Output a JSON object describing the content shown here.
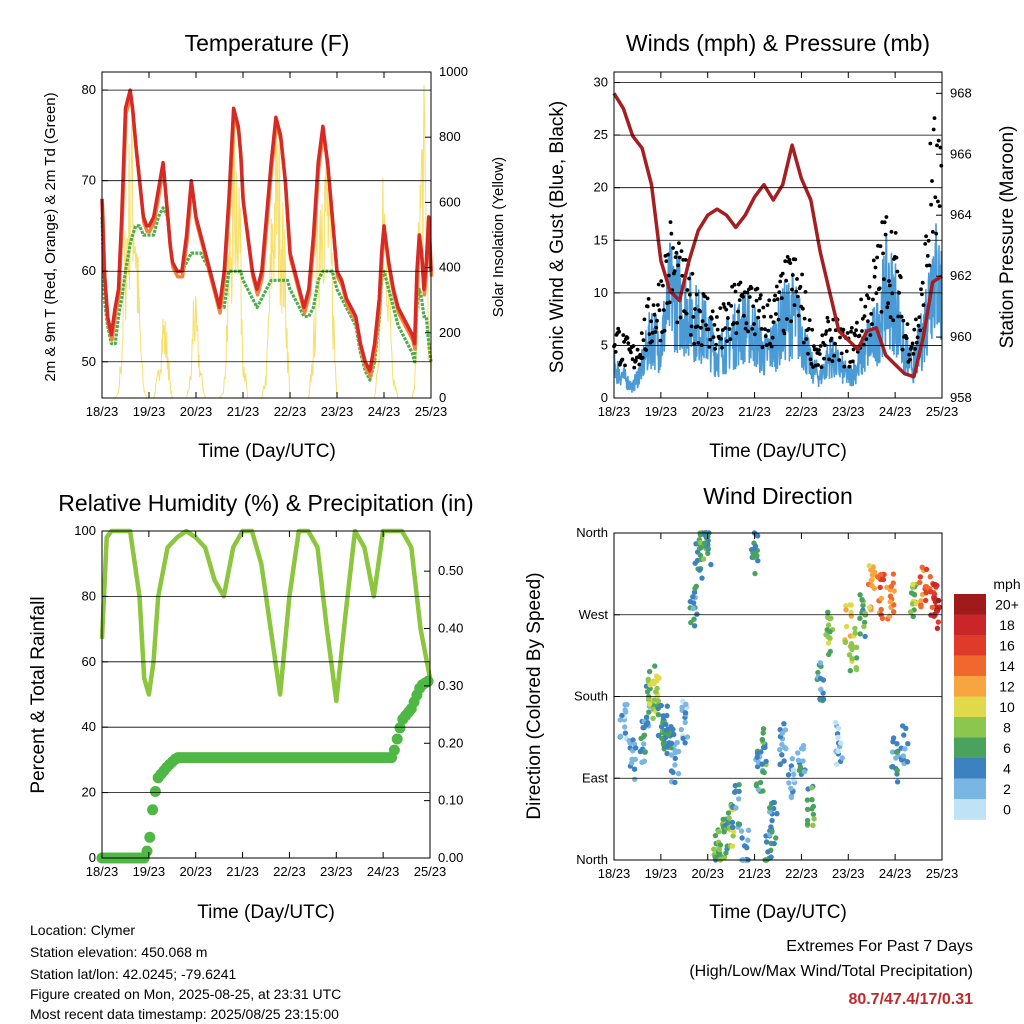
{
  "x_ticks": [
    "18/23",
    "19/23",
    "20/23",
    "21/23",
    "22/23",
    "23/23",
    "24/23",
    "25/23"
  ],
  "panels": {
    "temperature": {
      "title": "Temperature (F)",
      "xlabel": "Time (Day/UTC)",
      "ylabel": "2m & 9m T (Red, Orange) & 2m Td (Green)",
      "y2label": "Solar Insolation (Yellow)",
      "y_ticks": [
        "50",
        "60",
        "70",
        "80"
      ],
      "y2_ticks": [
        "0",
        "200",
        "400",
        "600",
        "800",
        "1000"
      ]
    },
    "winds": {
      "title": "Winds (mph) & Pressure (mb)",
      "xlabel": "Time (Day/UTC)",
      "ylabel": "Sonic Wind & Gust (Blue, Black)",
      "y2label": "Station Pressure (Maroon)",
      "y_ticks": [
        "0",
        "5",
        "10",
        "15",
        "20",
        "25",
        "30"
      ],
      "y2_ticks": [
        "958",
        "960",
        "962",
        "964",
        "966",
        "968"
      ]
    },
    "humidity": {
      "title": "Relative Humidity (%) & Precipitation (in)",
      "xlabel": "Time (Day/UTC)",
      "ylabel": "Percent & Total Rainfall",
      "y_ticks": [
        "0",
        "20",
        "40",
        "60",
        "80",
        "100"
      ],
      "y2_ticks": [
        "0.00",
        "0.10",
        "0.20",
        "0.30",
        "0.40",
        "0.50"
      ]
    },
    "direction": {
      "title": "Wind Direction",
      "xlabel": "Time (Day/UTC)",
      "ylabel": "Direction (Colored By Speed)",
      "y_ticks": [
        "North",
        "East",
        "South",
        "West",
        "North"
      ],
      "legend_title": "mph",
      "legend_labels": [
        "20+",
        "18",
        "16",
        "14",
        "12",
        "10",
        "8",
        "6",
        "4",
        "2",
        "0"
      ],
      "legend_colors": [
        "#a01a1c",
        "#c9262a",
        "#e03b2a",
        "#f0682e",
        "#f8a441",
        "#e0d94a",
        "#8dc64f",
        "#4aa35c",
        "#3d82c0",
        "#7ab6e3",
        "#bfe2f6"
      ]
    }
  },
  "info": {
    "location": "Location: Clymer",
    "elevation": "Station elevation: 450.068 m",
    "latlon": "Station lat/lon: 42.0245; -79.6241",
    "created": "Figure created on Mon, 2025-08-25, at 23:31 UTC",
    "recent": "Most recent data timestamp: 2025/08/25 23:15:00"
  },
  "extremes": {
    "line1": "Extremes For Past 7 Days",
    "line2": "(High/Low/Max Wind/Total Precipitation)",
    "values": "80.7/47.4/17/0.31"
  },
  "colors": {
    "temp_2m": "#d62a26",
    "temp_9m": "#f5843a",
    "dewpoint": "#4fae48",
    "solar": "#f7df6a",
    "wind": "#4a9ad6",
    "gust": "#000000",
    "pressure": "#a51f22",
    "rh": "#8cc63f",
    "rain": "#4fb845"
  },
  "chart_data": [
    {
      "type": "line",
      "title": "Temperature (F)",
      "xlabel": "Time (Day/UTC)",
      "ylabel": "2m & 9m T (Red, Orange) & 2m Td (Green)",
      "y2label": "Solar Insolation (Yellow)",
      "x_categories": [
        "18/23",
        "19/23",
        "20/23",
        "21/23",
        "22/23",
        "23/23",
        "24/23",
        "25/23"
      ],
      "ylim": [
        46,
        82
      ],
      "y2lim": [
        0,
        1000
      ],
      "x": [
        0,
        0.05,
        0.12,
        0.2,
        0.28,
        0.35,
        0.42,
        0.5,
        0.6,
        0.65,
        0.72,
        0.8,
        0.88,
        0.95,
        1.0,
        1.1,
        1.2,
        1.3,
        1.4,
        1.45,
        1.5,
        1.6,
        1.7,
        1.8,
        1.9,
        1.95,
        2.0,
        2.1,
        2.2,
        2.3,
        2.4,
        2.5,
        2.6,
        2.7,
        2.8,
        2.9,
        2.95,
        3.0,
        3.1,
        3.2,
        3.3,
        3.4,
        3.5,
        3.6,
        3.7,
        3.8,
        3.9,
        3.95,
        4.0,
        4.1,
        4.2,
        4.3,
        4.4,
        4.5,
        4.6,
        4.7,
        4.8,
        4.9,
        4.95,
        5.0,
        5.1,
        5.2,
        5.3,
        5.4,
        5.5,
        5.6,
        5.7,
        5.8,
        5.9,
        5.95,
        6.0,
        6.1,
        6.2,
        6.3,
        6.4,
        6.5,
        6.6,
        6.65,
        6.7,
        6.75,
        6.8,
        6.85,
        6.9,
        6.95,
        7.0
      ],
      "series": [
        {
          "name": "2m T",
          "values": [
            68,
            60,
            55,
            53,
            56,
            58,
            66,
            78,
            80,
            78,
            74,
            70,
            66,
            65,
            65,
            66,
            69,
            72,
            66,
            63,
            61,
            60,
            60,
            64,
            70,
            68,
            66,
            64,
            62,
            60,
            58,
            56,
            60,
            68,
            78,
            76,
            73,
            68,
            64,
            60,
            58,
            60,
            66,
            72,
            77,
            75,
            70,
            66,
            62,
            60,
            58,
            56,
            58,
            64,
            72,
            76,
            72,
            66,
            63,
            60,
            59,
            57,
            56,
            55,
            52,
            50,
            49,
            52,
            57,
            62,
            65,
            61,
            58,
            56,
            55,
            54,
            53,
            52,
            60,
            64,
            62,
            58,
            61,
            66,
            60
          ]
        },
        {
          "name": "2m Td",
          "values": [
            66,
            57,
            54,
            52,
            52,
            55,
            57,
            60,
            63,
            64,
            65,
            65,
            64,
            64,
            64,
            64,
            66,
            67,
            66,
            63,
            61,
            60,
            60,
            61,
            62,
            62,
            62,
            62,
            61,
            60,
            58,
            56,
            56,
            60,
            60,
            60,
            60,
            59,
            58,
            57,
            56,
            57,
            58,
            59,
            59,
            59,
            59,
            59,
            58,
            57,
            56,
            55,
            55,
            56,
            59,
            60,
            60,
            60,
            59,
            58,
            57,
            56,
            55,
            54,
            51,
            49,
            48,
            50,
            55,
            59,
            60,
            58,
            56,
            54,
            53,
            52,
            51,
            50,
            56,
            58,
            57,
            55,
            55,
            52,
            50
          ]
        },
        {
          "name": "Solar Insolation",
          "values": [
            0,
            0,
            0,
            0,
            0,
            20,
            200,
            600,
            900,
            950,
            700,
            300,
            50,
            0,
            0,
            0,
            100,
            300,
            200,
            50,
            0,
            0,
            0,
            0,
            100,
            400,
            300,
            100,
            0,
            0,
            0,
            0,
            50,
            500,
            900,
            950,
            600,
            200,
            0,
            0,
            0,
            0,
            100,
            600,
            900,
            800,
            500,
            200,
            0,
            0,
            0,
            0,
            0,
            200,
            700,
            950,
            800,
            500,
            200,
            0,
            0,
            0,
            0,
            0,
            0,
            0,
            0,
            0,
            200,
            600,
            800,
            500,
            100,
            0,
            0,
            0,
            0,
            50,
            300,
            700,
            950,
            980,
            800,
            300,
            100
          ]
        }
      ]
    },
    {
      "type": "line",
      "title": "Winds (mph) & Pressure (mb)",
      "xlabel": "Time (Day/UTC)",
      "ylabel": "Sonic Wind & Gust (Blue, Black)",
      "y2label": "Station Pressure (Maroon)",
      "x_categories": [
        "18/23",
        "19/23",
        "20/23",
        "21/23",
        "22/23",
        "23/23",
        "24/23",
        "25/23"
      ],
      "ylim": [
        0,
        31
      ],
      "y2lim": [
        958,
        968.7
      ],
      "x": [
        0,
        0.2,
        0.4,
        0.6,
        0.8,
        1.0,
        1.2,
        1.4,
        1.6,
        1.8,
        2.0,
        2.2,
        2.4,
        2.6,
        2.8,
        3.0,
        3.2,
        3.4,
        3.6,
        3.8,
        4.0,
        4.2,
        4.4,
        4.6,
        4.8,
        5.0,
        5.2,
        5.4,
        5.6,
        5.8,
        6.0,
        6.2,
        6.4,
        6.6,
        6.8,
        7.0
      ],
      "series": [
        {
          "name": "Sonic Wind",
          "values": [
            3,
            2,
            1,
            3,
            6,
            5,
            10,
            9,
            8,
            7,
            6,
            4,
            5,
            6,
            7,
            6,
            4,
            5,
            7,
            8,
            6,
            3,
            2,
            4,
            3,
            2,
            3,
            5,
            6,
            10,
            9,
            4,
            3,
            6,
            12,
            10
          ]
        },
        {
          "name": "Gust",
          "values": [
            8,
            6,
            5,
            7,
            10,
            12,
            17,
            14,
            12,
            11,
            10,
            8,
            9,
            11,
            12,
            11,
            9,
            10,
            12,
            14,
            12,
            7,
            5,
            8,
            7,
            6,
            8,
            11,
            14,
            18,
            16,
            8,
            7,
            12,
            28,
            22
          ]
        },
        {
          "name": "Station Pressure",
          "values": [
            968,
            967.5,
            966.6,
            966.2,
            965,
            962.5,
            961.5,
            961.2,
            962.5,
            963.5,
            964,
            964.2,
            964,
            963.6,
            964,
            964.6,
            965,
            964.5,
            965,
            966.3,
            965.2,
            964.5,
            962.8,
            961.5,
            960.2,
            959.9,
            959.6,
            960.2,
            960.3,
            959.4,
            959.1,
            958.8,
            958.7,
            960,
            961.8,
            962
          ]
        }
      ]
    },
    {
      "type": "line",
      "title": "Relative Humidity (%) & Precipitation (in)",
      "xlabel": "Time (Day/UTC)",
      "ylabel": "Percent & Total Rainfall",
      "x_categories": [
        "18/23",
        "19/23",
        "20/23",
        "21/23",
        "22/23",
        "23/23",
        "24/23",
        "25/23"
      ],
      "ylim": [
        0,
        100
      ],
      "y2lim": [
        0,
        0.57
      ],
      "x": [
        0,
        0.1,
        0.2,
        0.4,
        0.6,
        0.8,
        0.9,
        1.0,
        1.1,
        1.2,
        1.4,
        1.6,
        1.8,
        2.0,
        2.2,
        2.4,
        2.6,
        2.8,
        3.0,
        3.2,
        3.4,
        3.6,
        3.8,
        4.0,
        4.2,
        4.4,
        4.6,
        4.8,
        5.0,
        5.2,
        5.4,
        5.6,
        5.8,
        6.0,
        6.2,
        6.4,
        6.6,
        6.8,
        7.0
      ],
      "series": [
        {
          "name": "Relative Humidity",
          "values": [
            67,
            98,
            100,
            100,
            100,
            80,
            55,
            50,
            60,
            80,
            95,
            98,
            100,
            98,
            95,
            85,
            80,
            95,
            100,
            100,
            90,
            70,
            50,
            80,
            100,
            100,
            95,
            70,
            48,
            75,
            100,
            95,
            80,
            100,
            100,
            100,
            95,
            70,
            55
          ]
        },
        {
          "name": "Total Rainfall",
          "values": [
            0,
            0,
            0,
            0,
            0,
            0,
            0,
            0.02,
            0.1,
            0.14,
            0.16,
            0.175,
            0.175,
            0.175,
            0.175,
            0.175,
            0.175,
            0.175,
            0.175,
            0.175,
            0.175,
            0.175,
            0.175,
            0.175,
            0.175,
            0.175,
            0.175,
            0.175,
            0.175,
            0.175,
            0.175,
            0.175,
            0.175,
            0.175,
            0.175,
            0.24,
            0.26,
            0.3,
            0.31
          ]
        }
      ]
    },
    {
      "type": "scatter",
      "title": "Wind Direction",
      "xlabel": "Time (Day/UTC)",
      "ylabel": "Direction (Colored By Speed)",
      "x_categories": [
        "18/23",
        "19/23",
        "20/23",
        "21/23",
        "22/23",
        "23/23",
        "24/23",
        "25/23"
      ],
      "y_categories": [
        "North",
        "East",
        "South",
        "West",
        "North"
      ],
      "ylim": [
        0,
        360
      ],
      "colorbar": {
        "title": "mph",
        "levels": [
          "0",
          "2",
          "4",
          "6",
          "8",
          "10",
          "12",
          "14",
          "16",
          "18",
          "20+"
        ]
      },
      "series": [
        {
          "name": "direction",
          "x": [
            0.2,
            0.4,
            0.6,
            0.7,
            0.8,
            0.9,
            1.0,
            1.1,
            1.2,
            1.3,
            1.5,
            1.7,
            1.8,
            1.9,
            2.0,
            2.2,
            2.3,
            2.4,
            2.5,
            2.6,
            2.8,
            3.0,
            3.1,
            3.2,
            3.3,
            3.4,
            3.6,
            3.8,
            4.0,
            4.2,
            4.4,
            4.6,
            4.8,
            5.0,
            5.1,
            5.3,
            5.5,
            5.7,
            5.9,
            6.0,
            6.2,
            6.4,
            6.6,
            6.8,
            6.9
          ],
          "y": [
            150,
            110,
            130,
            170,
            190,
            180,
            160,
            145,
            140,
            110,
            150,
            280,
            330,
            355,
            350,
            10,
            20,
            30,
            40,
            60,
            10,
            340,
            100,
            120,
            20,
            40,
            130,
            90,
            110,
            60,
            200,
            250,
            130,
            260,
            230,
            270,
            300,
            290,
            290,
            110,
            130,
            280,
            300,
            290,
            280
          ],
          "speed": [
            2,
            3,
            4,
            4,
            8,
            9,
            6,
            5,
            4,
            3,
            2,
            4,
            5,
            6,
            5,
            6,
            8,
            6,
            8,
            4,
            3,
            5,
            4,
            6,
            5,
            4,
            3,
            2,
            4,
            6,
            4,
            8,
            2,
            10,
            8,
            6,
            12,
            14,
            13,
            4,
            3,
            8,
            14,
            16,
            18
          ]
        }
      ]
    }
  ]
}
